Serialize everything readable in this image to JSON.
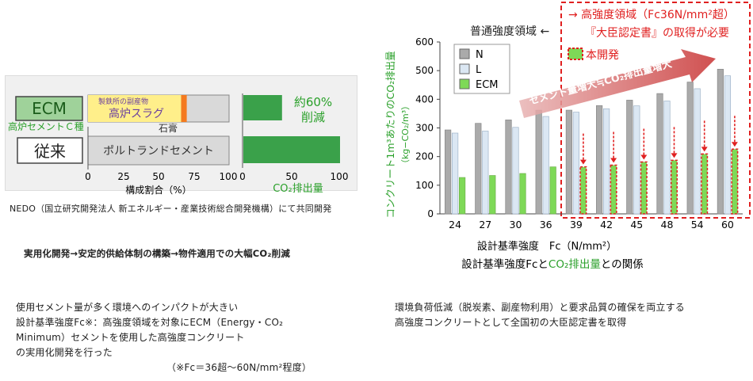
{
  "left_panel": {
    "ecm_box": "ECM",
    "ecm_sub": "高炉セメントＣ種",
    "slag_note": "製鉄所の副産物",
    "slag_label": "高炉スラグ",
    "gypsum_label": "石膏",
    "conventional_box": "従来",
    "portland_label": "ポルトランドセメント",
    "composition_ticks": [
      "0",
      "25",
      "50",
      "75",
      "100"
    ],
    "composition_label": "構成割合（%）",
    "co2_ticks": [
      "0",
      "50",
      "100"
    ],
    "co2_label": "CO₂排出量",
    "reduction_line1": "約60%",
    "reduction_line2": "削減",
    "composition_ecm": {
      "slag": 66,
      "gypsum": 4
    },
    "co2_relative": {
      "ecm": 40,
      "conventional": 100
    }
  },
  "nedo_line": "NEDO（国立研究開発法人 新エネルギー・産業技術総合開発機構）にて共同開発",
  "flow_text": "実用化開発→安定的供給体制の構築→物件適用での大幅CO₂削減",
  "desc_left": [
    "使用セメント量が多く環境へのインパクトが大きい",
    "設計基準強度Fc※：高強度領域を対象にECM（Energy・CO₂",
    "Minimum）セメントを使用した高強度コンクリート",
    "の実用化開発を行った",
    "（※Fc＝36超～60N/mm²程度）"
  ],
  "desc_right": [
    "環境負荷低減（脱炭素、副産物利用）と要求品質の確保を両立する",
    "高強度コンクリートとして全国初の大臣認定書を取得"
  ],
  "chart_data": {
    "type": "bar",
    "categories": [
      "24",
      "27",
      "30",
      "36",
      "39",
      "42",
      "45",
      "48",
      "54",
      "60"
    ],
    "series": [
      {
        "name": "N",
        "color": "#aaaaaa",
        "values": [
          293,
          316,
          328,
          362,
          362,
          378,
          397,
          420,
          460,
          505
        ]
      },
      {
        "name": "L",
        "color": "#dbe7f3",
        "values": [
          282,
          289,
          302,
          340,
          355,
          367,
          377,
          394,
          437,
          482
        ]
      },
      {
        "name": "ECM",
        "color": "#7ed957",
        "values": [
          127,
          134,
          141,
          164,
          164,
          170,
          181,
          187,
          209,
          226
        ]
      }
    ],
    "ylim": [
      0,
      600
    ],
    "yticks": [
      "0",
      "100",
      "200",
      "300",
      "400",
      "500",
      "600"
    ],
    "ylabel": "コンクリート1m³あたりのCO₂排出量",
    "ylabel_unit": "（kg−CO₂/m³）",
    "xlabel": "設計基準強度　Fc（N/mm²）",
    "title_part1": "設計基準強度Fcと",
    "title_part2": "CO₂排出量",
    "title_part3": "との関係",
    "normal_region": "普通強度領域 ←",
    "high_region": "→ 高強度領域（Fc36N/mm²超）",
    "certificate": "『大臣認定書』の取得が必要",
    "development_label": "本開発",
    "arrow_text": "セメント量増大≒CO₂排出量増大",
    "legend_position": "top-left",
    "grid": false
  }
}
